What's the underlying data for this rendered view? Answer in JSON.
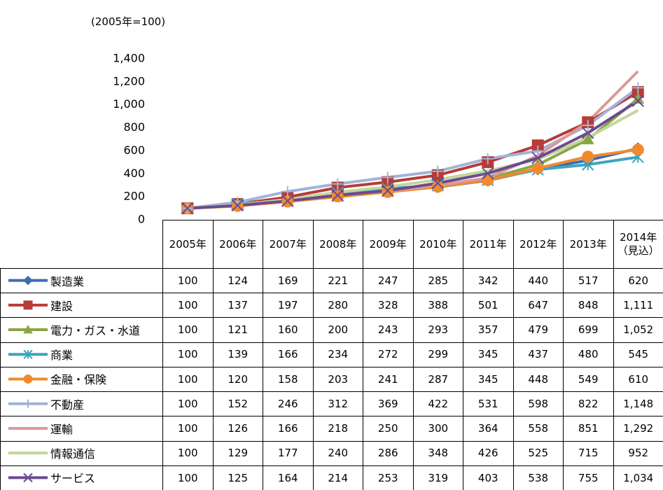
{
  "chart_data": {
    "type": "line",
    "subtitle": "(2005年=100)",
    "categories": [
      "2005年",
      "2006年",
      "2007年",
      "2008年",
      "2009年",
      "2010年",
      "2011年",
      "2012年",
      "2013年",
      "2014年\n（見込）"
    ],
    "ylim": [
      0,
      1400
    ],
    "yticks": [
      0,
      200,
      400,
      600,
      800,
      {
        "value": 1000,
        "label": "1,000"
      },
      {
        "value": 1200,
        "label": "1,200"
      },
      {
        "value": 1400,
        "label": "1,400"
      }
    ],
    "grid": false,
    "series": [
      {
        "name": "製造業",
        "color": "#3d6bb0",
        "marker": "diamond",
        "values": [
          100,
          124,
          169,
          221,
          247,
          285,
          342,
          440,
          517,
          620
        ]
      },
      {
        "name": "建設",
        "color": "#b83b36",
        "marker": "square",
        "values": [
          100,
          137,
          197,
          280,
          328,
          388,
          501,
          647,
          848,
          1111
        ],
        "value_labels": [
          "100",
          "137",
          "197",
          "280",
          "328",
          "388",
          "501",
          "647",
          "848",
          "1,111"
        ]
      },
      {
        "name": "電力・ガス・水道",
        "color": "#8aa644",
        "marker": "triangle",
        "values": [
          100,
          121,
          160,
          200,
          243,
          293,
          357,
          479,
          699,
          1052
        ],
        "value_labels": [
          "100",
          "121",
          "160",
          "200",
          "243",
          "293",
          "357",
          "479",
          "699",
          "1,052"
        ]
      },
      {
        "name": "商業",
        "color": "#3ea4bf",
        "marker": "asterisk",
        "values": [
          100,
          139,
          166,
          234,
          272,
          299,
          345,
          437,
          480,
          545
        ]
      },
      {
        "name": "金融・保険",
        "color": "#f08a2e",
        "marker": "circle",
        "values": [
          100,
          120,
          158,
          203,
          241,
          287,
          345,
          448,
          549,
          610
        ]
      },
      {
        "name": "不動産",
        "color": "#a0b4d8",
        "marker": "plus",
        "values": [
          100,
          152,
          246,
          312,
          369,
          422,
          531,
          598,
          822,
          1148
        ],
        "value_labels": [
          "100",
          "152",
          "246",
          "312",
          "369",
          "422",
          "531",
          "598",
          "822",
          "1,148"
        ]
      },
      {
        "name": "運輸",
        "color": "#dc9a98",
        "marker": "none",
        "values": [
          100,
          126,
          166,
          218,
          250,
          300,
          364,
          558,
          851,
          1292
        ],
        "value_labels": [
          "100",
          "126",
          "166",
          "218",
          "250",
          "300",
          "364",
          "558",
          "851",
          "1,292"
        ]
      },
      {
        "name": "情報通信",
        "color": "#c3d69b",
        "marker": "none",
        "values": [
          100,
          129,
          177,
          240,
          286,
          348,
          426,
          525,
          715,
          952
        ]
      },
      {
        "name": "サービス",
        "color": "#6a4a91",
        "marker": "x",
        "values": [
          100,
          125,
          164,
          214,
          253,
          319,
          403,
          538,
          755,
          1034
        ],
        "value_labels": [
          "100",
          "125",
          "164",
          "214",
          "253",
          "319",
          "403",
          "538",
          "755",
          "1,034"
        ]
      }
    ]
  }
}
